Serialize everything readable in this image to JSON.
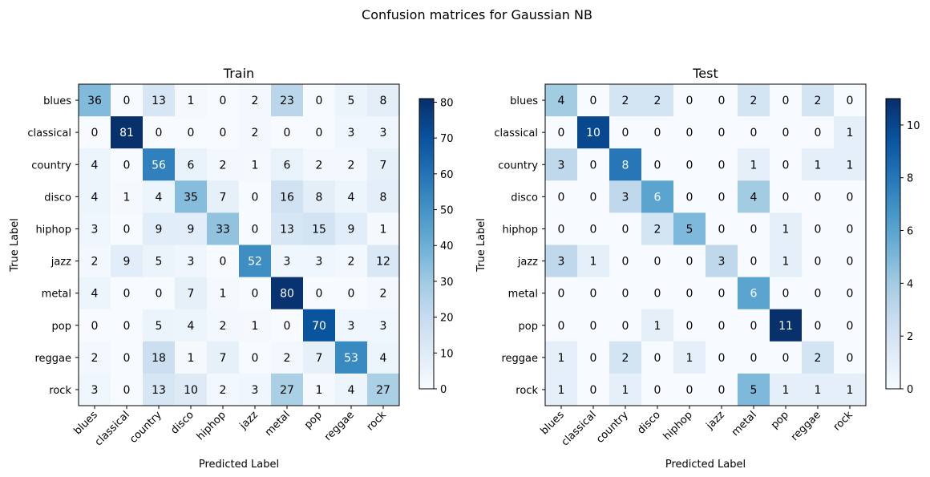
{
  "title": "Confusion matrices for Gaussian NB",
  "colormap": "Blues",
  "chart_data": [
    {
      "type": "heatmap",
      "title": "Train",
      "xlabel": "Predicted Label",
      "ylabel": "True Label",
      "categories": [
        "blues",
        "classical",
        "country",
        "disco",
        "hiphop",
        "jazz",
        "metal",
        "pop",
        "reggae",
        "rock"
      ],
      "values": [
        [
          36,
          0,
          13,
          1,
          0,
          2,
          23,
          0,
          5,
          8
        ],
        [
          0,
          81,
          0,
          0,
          0,
          2,
          0,
          0,
          3,
          3
        ],
        [
          4,
          0,
          56,
          6,
          2,
          1,
          6,
          2,
          2,
          7
        ],
        [
          4,
          1,
          4,
          35,
          7,
          0,
          16,
          8,
          4,
          8
        ],
        [
          3,
          0,
          9,
          9,
          33,
          0,
          13,
          15,
          9,
          1
        ],
        [
          2,
          9,
          5,
          3,
          0,
          52,
          3,
          3,
          2,
          12
        ],
        [
          4,
          0,
          0,
          7,
          1,
          0,
          80,
          0,
          0,
          2
        ],
        [
          0,
          0,
          5,
          4,
          2,
          1,
          0,
          70,
          3,
          3
        ],
        [
          2,
          0,
          18,
          1,
          7,
          0,
          2,
          7,
          53,
          4
        ],
        [
          3,
          0,
          13,
          10,
          2,
          3,
          27,
          1,
          4,
          27
        ]
      ],
      "colorbar": {
        "ticks": [
          "0",
          "10",
          "20",
          "30",
          "40",
          "50",
          "60",
          "70",
          "80"
        ],
        "range": [
          0,
          81
        ]
      }
    },
    {
      "type": "heatmap",
      "title": "Test",
      "xlabel": "Predicted Label",
      "ylabel": "True Label",
      "categories": [
        "blues",
        "classical",
        "country",
        "disco",
        "hiphop",
        "jazz",
        "metal",
        "pop",
        "reggae",
        "rock"
      ],
      "values": [
        [
          4,
          0,
          2,
          2,
          0,
          0,
          2,
          0,
          2,
          0
        ],
        [
          0,
          10,
          0,
          0,
          0,
          0,
          0,
          0,
          0,
          1
        ],
        [
          3,
          0,
          8,
          0,
          0,
          0,
          1,
          0,
          1,
          1
        ],
        [
          0,
          0,
          3,
          6,
          0,
          0,
          4,
          0,
          0,
          0
        ],
        [
          0,
          0,
          0,
          2,
          5,
          0,
          0,
          1,
          0,
          0
        ],
        [
          3,
          1,
          0,
          0,
          0,
          3,
          0,
          1,
          0,
          0
        ],
        [
          0,
          0,
          0,
          0,
          0,
          0,
          6,
          0,
          0,
          0
        ],
        [
          0,
          0,
          0,
          1,
          0,
          0,
          0,
          11,
          0,
          0
        ],
        [
          1,
          0,
          2,
          0,
          1,
          0,
          0,
          0,
          2,
          0
        ],
        [
          1,
          0,
          1,
          0,
          0,
          0,
          5,
          1,
          1,
          1
        ]
      ],
      "colorbar": {
        "ticks": [
          "0",
          "2",
          "4",
          "6",
          "8",
          "10"
        ],
        "range": [
          0,
          11
        ]
      }
    }
  ]
}
